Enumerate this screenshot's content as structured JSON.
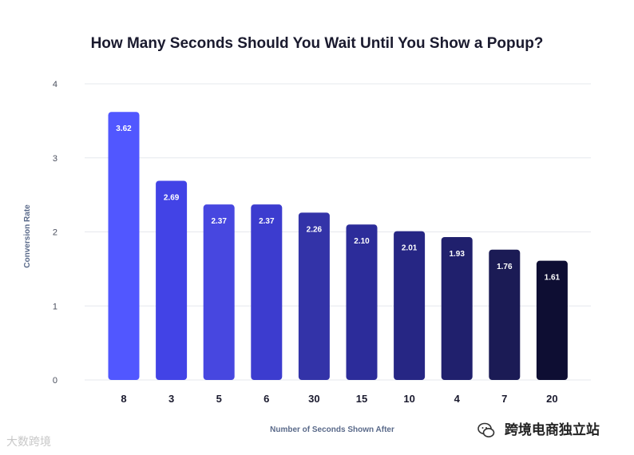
{
  "chart_data": {
    "type": "bar",
    "title": "How Many Seconds Should You Wait Until You Show a Popup?",
    "xlabel": "Number of Seconds Shown After",
    "ylabel": "Conversion Rate",
    "ylim": [
      0,
      4
    ],
    "yticks": [
      "0",
      "1",
      "2",
      "3",
      "4"
    ],
    "categories": [
      "8",
      "3",
      "5",
      "6",
      "30",
      "15",
      "10",
      "4",
      "7",
      "20"
    ],
    "values": [
      3.62,
      2.69,
      2.37,
      2.37,
      2.26,
      2.1,
      2.01,
      1.93,
      1.76,
      1.61
    ],
    "value_labels": [
      "3.62",
      "2.69",
      "2.37",
      "2.37",
      "2.26",
      "2.10",
      "2.01",
      "1.93",
      "1.76",
      "1.61"
    ],
    "bar_colors": [
      "#5157ff",
      "#4243e6",
      "#4747e0",
      "#3c3ccf",
      "#3333a8",
      "#2c2c9a",
      "#262684",
      "#20206d",
      "#1b1b55",
      "#0e0e33"
    ],
    "grid": true,
    "legend": "none"
  },
  "watermarks": {
    "left": "大数跨境",
    "right": "跨境电商独立站"
  }
}
